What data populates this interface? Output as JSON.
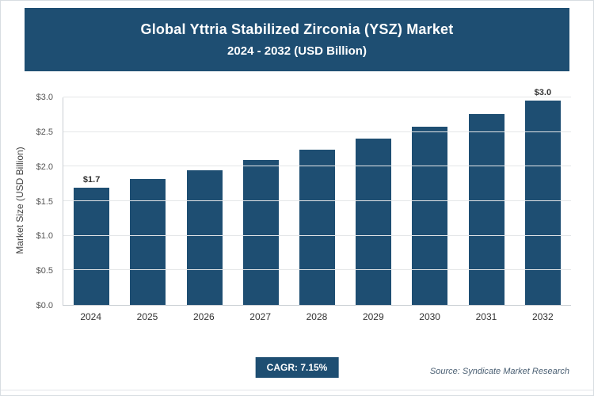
{
  "header": {
    "title_line1": "Global Yttria Stabilized Zirconia (YSZ) Market",
    "title_line2": "2024 - 2032 (USD Billion)"
  },
  "chart_data": {
    "type": "bar",
    "categories": [
      "2024",
      "2025",
      "2026",
      "2027",
      "2028",
      "2029",
      "2030",
      "2031",
      "2032"
    ],
    "values": [
      1.7,
      1.82,
      1.95,
      2.09,
      2.24,
      2.41,
      2.58,
      2.76,
      2.96
    ],
    "bar_labels": {
      "2024": "$1.7",
      "2032": "$3.0"
    },
    "title": "Global Yttria Stabilized Zirconia (YSZ) Market 2024 - 2032 (USD Billion)",
    "xlabel": "",
    "ylabel": "Market Size (USD Billion)",
    "ylim": [
      0,
      3.0
    ],
    "yticks": [
      "$0.0",
      "$0.5",
      "$1.0",
      "$1.5",
      "$2.0",
      "$2.5",
      "$3.0"
    ],
    "grid": true,
    "legend": "none",
    "bar_color": "#1e4e72"
  },
  "footer": {
    "cagr_label": "CAGR: 7.15%",
    "source": "Source: Syndicate Market Research"
  },
  "colors": {
    "accent": "#1e4e72",
    "grid": "#e4e6e8"
  }
}
